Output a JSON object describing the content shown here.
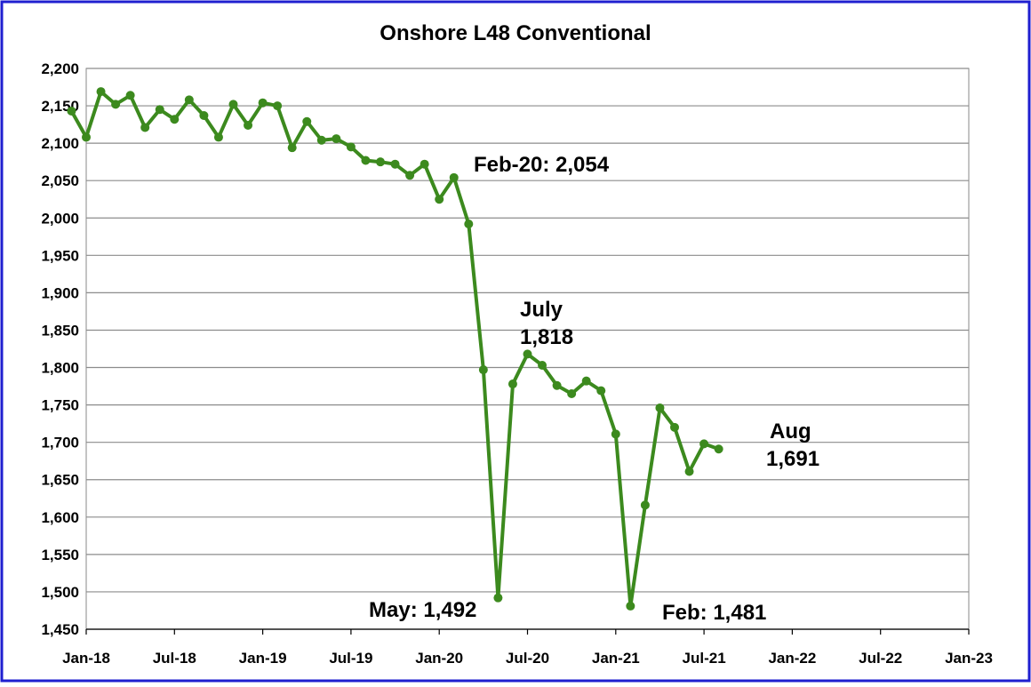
{
  "chart_data": {
    "type": "line",
    "title": "Onshore L48 Conventional",
    "x": [
      "Dec-17",
      "Jan-18",
      "Feb-18",
      "Mar-18",
      "Apr-18",
      "May-18",
      "Jun-18",
      "Jul-18",
      "Aug-18",
      "Sep-18",
      "Oct-18",
      "Nov-18",
      "Dec-18",
      "Jan-19",
      "Feb-19",
      "Mar-19",
      "Apr-19",
      "May-19",
      "Jun-19",
      "Jul-19",
      "Aug-19",
      "Sep-19",
      "Oct-19",
      "Nov-19",
      "Dec-19",
      "Jan-20",
      "Feb-20",
      "Mar-20",
      "Apr-20",
      "May-20",
      "Jun-20",
      "Jul-20",
      "Aug-20",
      "Sep-20",
      "Oct-20",
      "Nov-20",
      "Dec-20",
      "Jan-21",
      "Feb-21",
      "Mar-21",
      "Apr-21",
      "May-21",
      "Jun-21",
      "Jul-21",
      "Aug-21"
    ],
    "values": [
      2143,
      2108,
      2169,
      2152,
      2164,
      2121,
      2145,
      2132,
      2158,
      2137,
      2108,
      2152,
      2124,
      2154,
      2150,
      2094,
      2129,
      2104,
      2106,
      2095,
      2077,
      2075,
      2072,
      2057,
      2072,
      2025,
      2054,
      1992,
      1797,
      1492,
      1778,
      1818,
      1803,
      1776,
      1765,
      1782,
      1769,
      1711,
      1481,
      1616,
      1746,
      1720,
      1661,
      1698,
      1691
    ],
    "color": "#3c8a1e",
    "xlim": [
      "Jan-18",
      "Jan-23"
    ],
    "xticks": [
      "Jan-18",
      "Jul-18",
      "Jan-19",
      "Jul-19",
      "Jan-20",
      "Jul-20",
      "Jan-21",
      "Jul-21",
      "Jan-22",
      "Jul-22",
      "Jan-23"
    ],
    "ylim": [
      1450,
      2200
    ],
    "yticks": [
      {
        "value": 1450,
        "label": "1,450"
      },
      {
        "value": 1500,
        "label": "1,500"
      },
      {
        "value": 1550,
        "label": "1,550"
      },
      {
        "value": 1600,
        "label": "1,600"
      },
      {
        "value": 1650,
        "label": "1,650"
      },
      {
        "value": 1700,
        "label": "1,700"
      },
      {
        "value": 1750,
        "label": "1,750"
      },
      {
        "value": 1800,
        "label": "1,800"
      },
      {
        "value": 1850,
        "label": "1,850"
      },
      {
        "value": 1900,
        "label": "1,900"
      },
      {
        "value": 1950,
        "label": "1,950"
      },
      {
        "value": 2000,
        "label": "2,000"
      },
      {
        "value": 2050,
        "label": "2,050"
      },
      {
        "value": 2100,
        "label": "2,100"
      },
      {
        "value": 2150,
        "label": "2,150"
      },
      {
        "value": 2200,
        "label": "2,200"
      }
    ],
    "grid": true,
    "annotations": [
      {
        "lines": [
          "Feb-20: 2,054"
        ]
      },
      {
        "lines": [
          "July",
          "1,818"
        ]
      },
      {
        "lines": [
          "May: 1,492"
        ]
      },
      {
        "lines": [
          "Feb: 1,481"
        ]
      },
      {
        "lines": [
          "Aug",
          "1,691"
        ]
      }
    ]
  }
}
